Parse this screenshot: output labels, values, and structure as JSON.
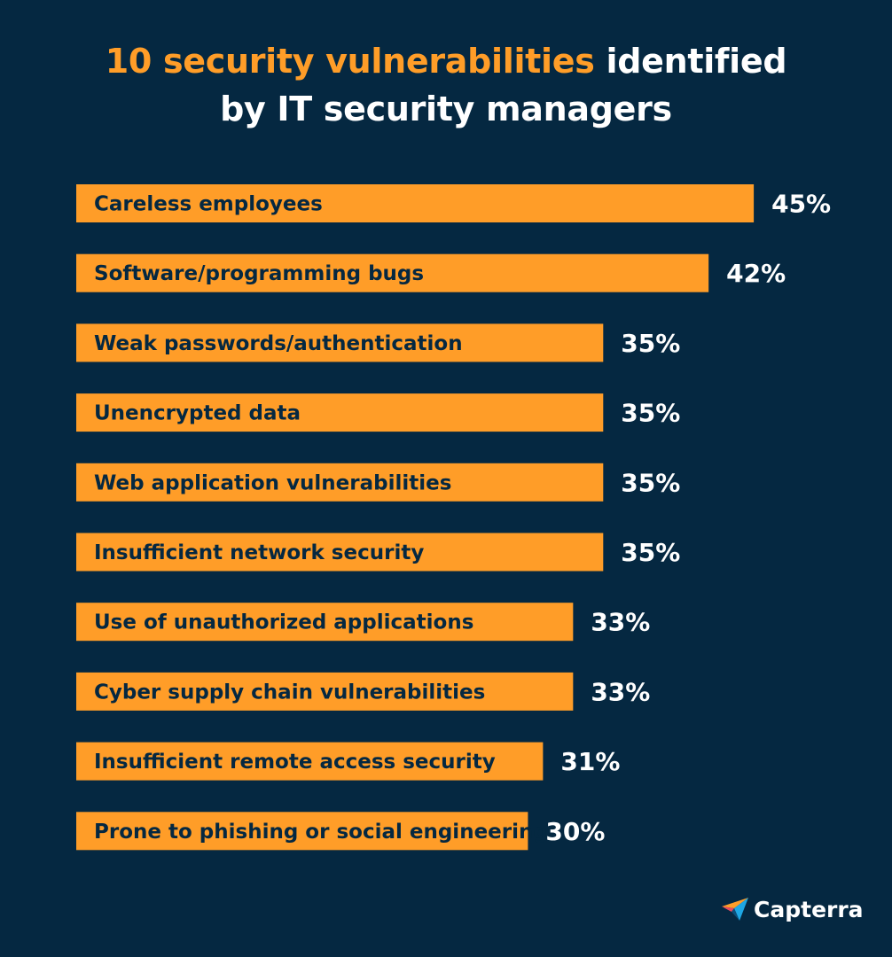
{
  "title": {
    "highlight": "10 security vulnerabilities",
    "rest_line1": " identified",
    "line2": "by IT security managers"
  },
  "colors": {
    "background": "#052841",
    "bar": "#ff9d28",
    "bar_text": "#052841",
    "value_text": "#ffffff"
  },
  "chart_data": {
    "type": "bar",
    "orientation": "horizontal",
    "title": "10 security vulnerabilities identified by IT security managers",
    "xlim": [
      0,
      50
    ],
    "grid": false,
    "value_format": "{v}%",
    "categories": [
      "Careless employees",
      "Software/programming bugs",
      "Weak passwords/authentication",
      "Unencrypted data",
      "Web application vulnerabilities",
      "Insufficient network security",
      "Use of unauthorized applications",
      "Cyber supply chain vulnerabilities",
      "Insufficient remote access security",
      "Prone to phishing or social engineering"
    ],
    "values": [
      45,
      42,
      35,
      35,
      35,
      35,
      33,
      33,
      31,
      30
    ]
  },
  "brand": {
    "name": "Capterra",
    "logo_icon": "capterra-arrow-icon"
  }
}
